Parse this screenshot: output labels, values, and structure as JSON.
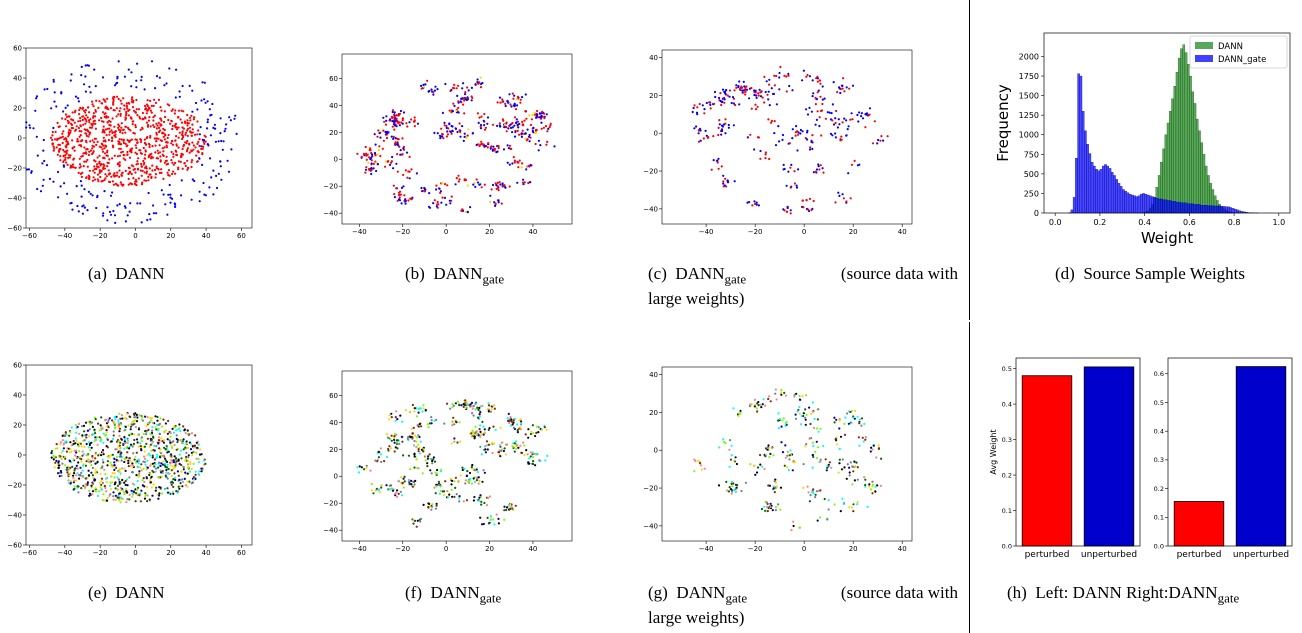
{
  "captions": {
    "a": {
      "prefix": "(a)",
      "main": "DANN"
    },
    "b": {
      "prefix": "(b)",
      "main": "DANN",
      "sub": "gate"
    },
    "c": {
      "prefix": "(c)",
      "main": "DANN",
      "sub": "gate",
      "rest": "(source data with",
      "line2": "large weights)"
    },
    "d": {
      "prefix": "(d)",
      "main": "Source Sample Weights"
    },
    "e": {
      "prefix": "(e)",
      "main": "DANN"
    },
    "f": {
      "prefix": "(f)",
      "main": "DANN",
      "sub": "gate"
    },
    "g": {
      "prefix": "(g)",
      "main": "DANN",
      "sub": "gate",
      "rest": "(source data with",
      "line2": "large weights)"
    },
    "h": {
      "prefix": "(h)",
      "main": "Left: DANN Right:DANN",
      "sub": "gate"
    }
  },
  "chart_data": [
    {
      "id": "a",
      "type": "scatter",
      "title": "",
      "xticks": [
        -60,
        -40,
        -20,
        0,
        20,
        40,
        60
      ],
      "yticks": [
        -60,
        -40,
        -20,
        0,
        20,
        40,
        60
      ],
      "xlim": [
        -62,
        66
      ],
      "ylim": [
        -60,
        60
      ],
      "series_colors": [
        "#ff0000",
        "#0000ff"
      ],
      "points_count": [
        900,
        230
      ],
      "colors": {
        "red": "#ff0000",
        "blue": "#0000ff"
      }
    },
    {
      "id": "b",
      "type": "scatter",
      "title": "",
      "xticks": [
        -40,
        -20,
        0,
        20,
        40
      ],
      "yticks": [
        -40,
        -20,
        0,
        20,
        40,
        60
      ],
      "xlim": [
        -48,
        58
      ],
      "ylim": [
        -48,
        78
      ],
      "series_colors": [
        "#ff0000",
        "#0000ff",
        "#ffd700"
      ],
      "points_count": [
        330,
        300,
        25
      ]
    },
    {
      "id": "c",
      "type": "scatter",
      "title": "",
      "xticks": [
        -40,
        -20,
        0,
        20,
        40
      ],
      "yticks": [
        -40,
        -20,
        0,
        20,
        40
      ],
      "xlim": [
        -58,
        44
      ],
      "ylim": [
        -48,
        44
      ],
      "series_colors": [
        "#ff0000",
        "#0000ff"
      ],
      "points_count": [
        160,
        230
      ]
    },
    {
      "id": "d",
      "type": "bar",
      "subtype": "histogram",
      "xlabel": "Weight",
      "ylabel": "Frequency",
      "xticks": [
        "0.0",
        "0.2",
        "0.4",
        "0.6",
        "0.8",
        "1.0"
      ],
      "yticks": [
        "0",
        "250",
        "500",
        "750",
        "1000",
        "1250",
        "1500",
        "1750",
        "2000"
      ],
      "xlim": [
        -0.05,
        1.05
      ],
      "ylim": [
        0,
        2300
      ],
      "legend": {
        "placement": "top-right"
      },
      "series": [
        {
          "name": "DANN",
          "color": "#228b22",
          "bins_start": 0.0,
          "bin_width": 0.01,
          "values": [
            0,
            0,
            0,
            0,
            0,
            0,
            0,
            0,
            0,
            0,
            0,
            0,
            0,
            0,
            0,
            0,
            0,
            0,
            0,
            0,
            0,
            0,
            0,
            0,
            0,
            0,
            0,
            0,
            0,
            0,
            0,
            0,
            0,
            0,
            0,
            0,
            0,
            0,
            0,
            5,
            15,
            30,
            60,
            110,
            200,
            330,
            480,
            650,
            820,
            1000,
            1150,
            1300,
            1460,
            1620,
            1800,
            1980,
            2100,
            2150,
            2050,
            1900,
            1750,
            1550,
            1400,
            1200,
            1050,
            900,
            750,
            600,
            480,
            380,
            300,
            220,
            160,
            110,
            80,
            55,
            35,
            20,
            10,
            5,
            0,
            0,
            0,
            0,
            0,
            0,
            0,
            0,
            0,
            0,
            0,
            0,
            0,
            0,
            0,
            0,
            0,
            0,
            0,
            0
          ]
        },
        {
          "name": "DANN_gate",
          "color": "#0000ff",
          "bins_start": 0.0,
          "bin_width": 0.01,
          "values": [
            0,
            0,
            0,
            0,
            0,
            0,
            5,
            40,
            200,
            700,
            1780,
            1750,
            1300,
            1050,
            880,
            760,
            650,
            600,
            560,
            540,
            560,
            600,
            620,
            600,
            570,
            520,
            480,
            430,
            380,
            340,
            300,
            280,
            260,
            240,
            230,
            220,
            210,
            220,
            240,
            250,
            240,
            230,
            220,
            210,
            200,
            190,
            180,
            180,
            170,
            170,
            160,
            160,
            150,
            150,
            140,
            140,
            130,
            130,
            130,
            120,
            120,
            120,
            110,
            110,
            110,
            100,
            100,
            100,
            95,
            95,
            95,
            90,
            90,
            90,
            85,
            85,
            80,
            80,
            70,
            60,
            50,
            40,
            30,
            20,
            15,
            10,
            5,
            3,
            2,
            1,
            1,
            0,
            0,
            0,
            0,
            0,
            0,
            0,
            0,
            0,
            0
          ]
        }
      ]
    },
    {
      "id": "e",
      "type": "scatter",
      "title": "",
      "xticks": [
        -60,
        -40,
        -20,
        0,
        20,
        40,
        60
      ],
      "yticks": [
        -60,
        -40,
        -20,
        0,
        20,
        40,
        60
      ],
      "xlim": [
        -62,
        66
      ],
      "ylim": [
        -60,
        60
      ],
      "series_colors": [
        "#00ffff",
        "#7cfc00",
        "#000000",
        "#8b2500",
        "#ff8080",
        "#708090",
        "#006400",
        "#ffd700",
        "#00008b"
      ],
      "points_count": [
        1000
      ]
    },
    {
      "id": "f",
      "type": "scatter",
      "title": "",
      "xticks": [
        -40,
        -20,
        0,
        20,
        40
      ],
      "yticks": [
        -40,
        -20,
        0,
        20,
        40,
        60
      ],
      "xlim": [
        -48,
        58
      ],
      "ylim": [
        -48,
        78
      ],
      "series_colors": [
        "#00ffff",
        "#7cfc00",
        "#000000",
        "#8b2500",
        "#ff8080",
        "#708090",
        "#006400",
        "#ffd700",
        "#00008b"
      ],
      "points_count": [
        600
      ]
    },
    {
      "id": "g",
      "type": "scatter",
      "title": "",
      "xticks": [
        -40,
        -20,
        0,
        20,
        40
      ],
      "yticks": [
        -40,
        -20,
        0,
        20,
        40
      ],
      "xlim": [
        -58,
        44
      ],
      "ylim": [
        -48,
        44
      ],
      "series_colors": [
        "#00ffff",
        "#7cfc00",
        "#000000",
        "#8b2500",
        "#ff8080",
        "#708090",
        "#006400",
        "#ffd700",
        "#00008b"
      ],
      "points_count": [
        360
      ]
    },
    {
      "id": "h-left",
      "type": "bar",
      "ylabel": "Avg Weight",
      "categories": [
        "perturbed",
        "unperturbed"
      ],
      "values": [
        0.48,
        0.505
      ],
      "colors": [
        "#ff0000",
        "#0000cd"
      ],
      "yticks": [
        "0.0",
        "0.1",
        "0.2",
        "0.3",
        "0.4",
        "0.5"
      ],
      "ylim": [
        0,
        0.53
      ]
    },
    {
      "id": "h-right",
      "type": "bar",
      "categories": [
        "perturbed",
        "unperturbed"
      ],
      "values": [
        0.155,
        0.625
      ],
      "colors": [
        "#ff0000",
        "#0000cd"
      ],
      "yticks": [
        "0.0",
        "0.1",
        "0.2",
        "0.3",
        "0.4",
        "0.5",
        "0.6"
      ],
      "ylim": [
        0,
        0.655
      ]
    }
  ]
}
